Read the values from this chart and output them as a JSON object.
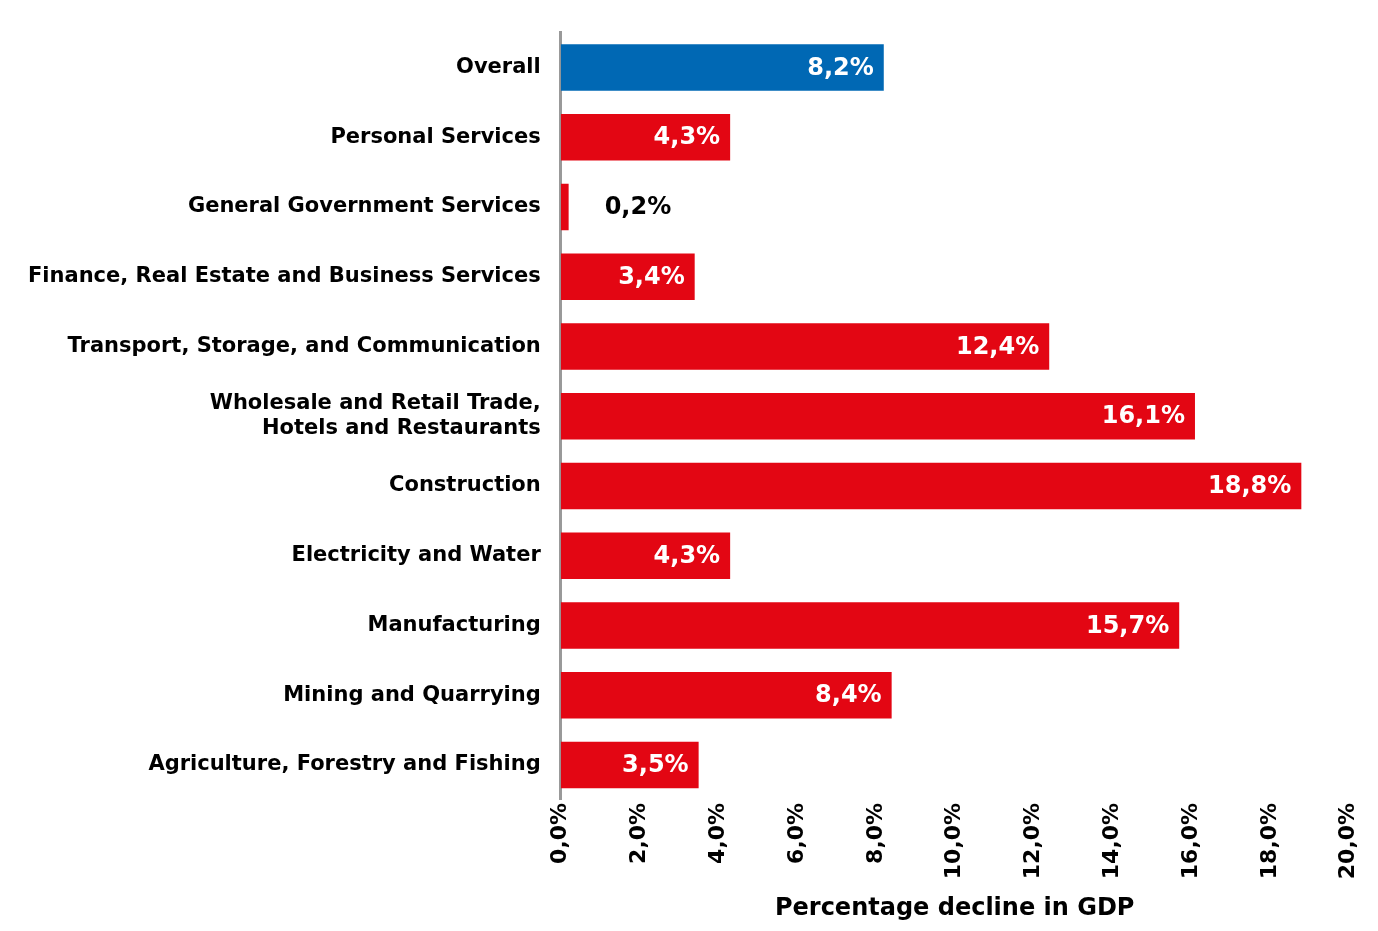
{
  "chart_data": {
    "type": "bar",
    "orientation": "horizontal",
    "xlabel": "Percentage decline in GDP",
    "categories": [
      "Overall",
      "Personal Services",
      "General Government Services",
      "Finance, Real Estate and Business Services",
      "Transport, Storage, and Communication",
      "Wholesale and Retail Trade, Hotels and Restaurants",
      "Construction",
      "Electricity and Water",
      "Manufacturing",
      "Mining and Quarrying",
      "Agriculture, Forestry and Fishing"
    ],
    "values": [
      8.2,
      4.3,
      0.2,
      3.4,
      12.4,
      16.1,
      18.8,
      4.3,
      15.7,
      8.4,
      3.5
    ],
    "value_labels": [
      "8,2%",
      "4,3%",
      "0,2%",
      "3,4%",
      "12,4%",
      "16,1%",
      "18,8%",
      "4,3%",
      "15,7%",
      "8,4%",
      "3,5%"
    ],
    "colors": [
      "#0068b4",
      "#e30613",
      "#e30613",
      "#e30613",
      "#e30613",
      "#e30613",
      "#e30613",
      "#e30613",
      "#e30613",
      "#e30613",
      "#e30613"
    ],
    "xlim": [
      0,
      20
    ],
    "xticks": [
      {
        "value": 0,
        "label": "0,0%"
      },
      {
        "value": 2,
        "label": "2,0%"
      },
      {
        "value": 4,
        "label": "4,0%"
      },
      {
        "value": 6,
        "label": "6,0%"
      },
      {
        "value": 8,
        "label": "8,0%"
      },
      {
        "value": 10,
        "label": "10,0%"
      },
      {
        "value": 12,
        "label": "12,0%"
      },
      {
        "value": 14,
        "label": "14,0%"
      },
      {
        "value": 16,
        "label": "16,0%"
      },
      {
        "value": 18,
        "label": "18,0%"
      },
      {
        "value": 20,
        "label": "20,0%"
      }
    ],
    "grid": false,
    "legend": false
  }
}
